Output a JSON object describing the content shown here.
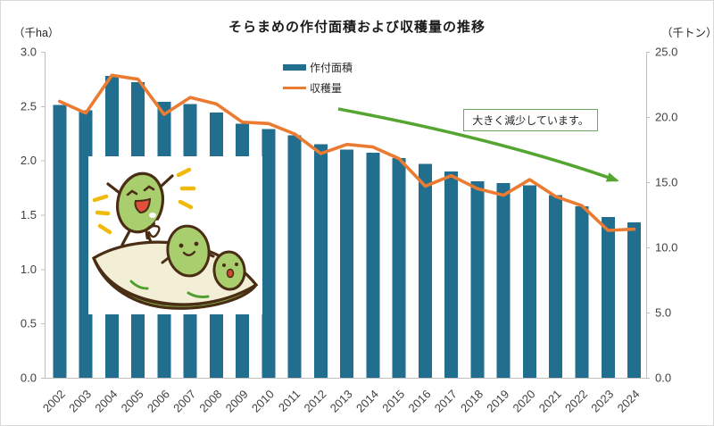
{
  "header": {
    "title": "そらまめの作付面積および収穫量の推移",
    "left_unit": "（千ha）",
    "right_unit": "（千トン）"
  },
  "annotation": {
    "text": "大きく減少しています。",
    "border_color": "#6bab60",
    "arrow_color": "#55a630"
  },
  "colors": {
    "bar": "#216e8e",
    "line": "#ec7b32",
    "axis": "#bfbfbf",
    "tick_text": "#404040"
  },
  "illustration_name": "soramame-beans-cartoon",
  "chart_data": {
    "type": "bar",
    "title": "そらまめの作付面積および収穫量の推移",
    "categories": [
      "2002",
      "2003",
      "2004",
      "2005",
      "2006",
      "2007",
      "2008",
      "2009",
      "2010",
      "2011",
      "2012",
      "2013",
      "2014",
      "2015",
      "2016",
      "2017",
      "2018",
      "2019",
      "2020",
      "2021",
      "2022",
      "2023",
      "2024"
    ],
    "series": [
      {
        "name": "作付面積",
        "type": "bar",
        "axis": "left",
        "unit": "千ha",
        "color": "#216e8e",
        "values": [
          2.51,
          2.46,
          2.78,
          2.72,
          2.54,
          2.52,
          2.44,
          2.34,
          2.29,
          2.23,
          2.15,
          2.1,
          2.07,
          2.02,
          1.97,
          1.9,
          1.81,
          1.79,
          1.77,
          1.68,
          1.58,
          1.48,
          1.43
        ]
      },
      {
        "name": "収穫量",
        "type": "line",
        "axis": "right",
        "unit": "千トン",
        "color": "#ec7b32",
        "values": [
          21.2,
          20.3,
          23.2,
          22.9,
          20.2,
          21.5,
          21.0,
          19.6,
          19.5,
          18.7,
          17.2,
          17.9,
          17.7,
          16.8,
          14.7,
          15.5,
          14.5,
          14.0,
          15.2,
          13.9,
          13.2,
          11.3,
          11.4
        ]
      }
    ],
    "left_axis": {
      "label": "（千ha）",
      "min": 0,
      "max": 3.0,
      "ticks": [
        3.0,
        2.5,
        2.0,
        1.5,
        1.0,
        0.5,
        0.0
      ]
    },
    "right_axis": {
      "label": "（千トン）",
      "min": 0,
      "max": 25.0,
      "ticks": [
        25.0,
        20.0,
        15.0,
        10.0,
        5.0,
        0.0
      ]
    },
    "grid": false,
    "legend_position": "top-center"
  }
}
